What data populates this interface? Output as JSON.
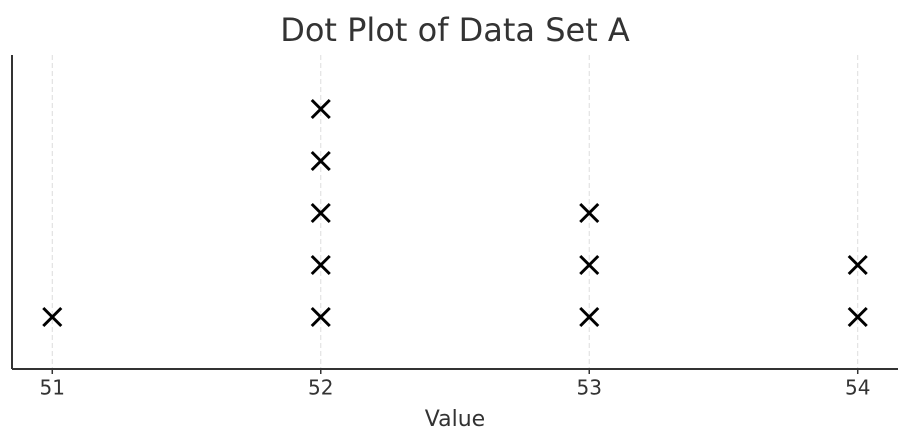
{
  "chart_data": {
    "type": "dot",
    "title": "Dot Plot of Data Set A",
    "x_label": "Value",
    "values": [
      51,
      52,
      52,
      52,
      52,
      52,
      53,
      53,
      53,
      54,
      54
    ],
    "color": "#000000",
    "xlim": [
      50.85,
      54.15
    ],
    "xticks": [
      51,
      52,
      53,
      54
    ],
    "grid": true
  }
}
